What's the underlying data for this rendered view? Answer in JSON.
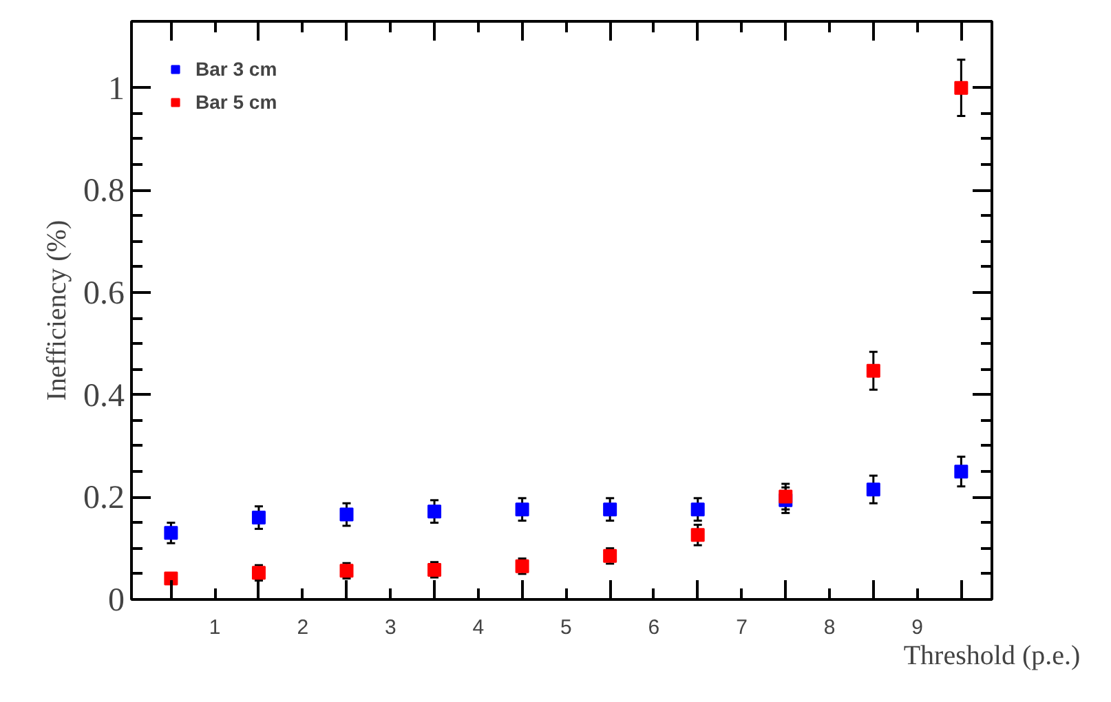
{
  "chart_data": {
    "type": "scatter",
    "xlabel": "Threshold (p.e.)",
    "ylabel": "Inefficiency (%)",
    "x": [
      0.5,
      1.5,
      2.5,
      3.5,
      4.5,
      5.5,
      6.5,
      7.5,
      8.5,
      9.5
    ],
    "series": [
      {
        "name": "Bar 3 cm",
        "color": "#0000ff",
        "values": [
          0.13,
          0.16,
          0.166,
          0.172,
          0.176,
          0.176,
          0.176,
          0.194,
          0.215,
          0.25
        ],
        "errors": [
          0.02,
          0.022,
          0.022,
          0.022,
          0.022,
          0.022,
          0.022,
          0.025,
          0.027,
          0.029
        ]
      },
      {
        "name": "Bar 5 cm",
        "color": "#ff0000",
        "values": [
          0.041,
          0.052,
          0.056,
          0.058,
          0.065,
          0.085,
          0.126,
          0.201,
          0.447,
          1.0
        ],
        "errors": [
          null,
          0.015,
          0.015,
          0.015,
          0.015,
          0.015,
          0.02,
          0.025,
          0.037,
          0.055
        ]
      }
    ],
    "xlim": [
      0.05,
      9.85
    ],
    "ylim": [
      0,
      1.13
    ],
    "xticks": [
      1,
      2,
      3,
      4,
      5,
      6,
      7,
      8,
      9,
      {
        "value": 0.5,
        "label": null
      },
      {
        "value": 1.5,
        "label": null
      },
      {
        "value": 2.5,
        "label": null
      },
      {
        "value": 3.5,
        "label": null
      },
      {
        "value": 4.5,
        "label": null
      },
      {
        "value": 5.5,
        "label": null
      },
      {
        "value": 6.5,
        "label": null
      },
      {
        "value": 7.5,
        "label": null
      },
      {
        "value": 8.5,
        "label": null
      },
      {
        "value": 9.5,
        "label": null
      }
    ],
    "yticks": [
      {
        "value": 0,
        "label": "0"
      },
      0.2,
      0.4,
      0.6,
      0.8,
      {
        "value": 1,
        "label": "1"
      }
    ],
    "marker": "square",
    "legend": "top left",
    "grid": false
  }
}
